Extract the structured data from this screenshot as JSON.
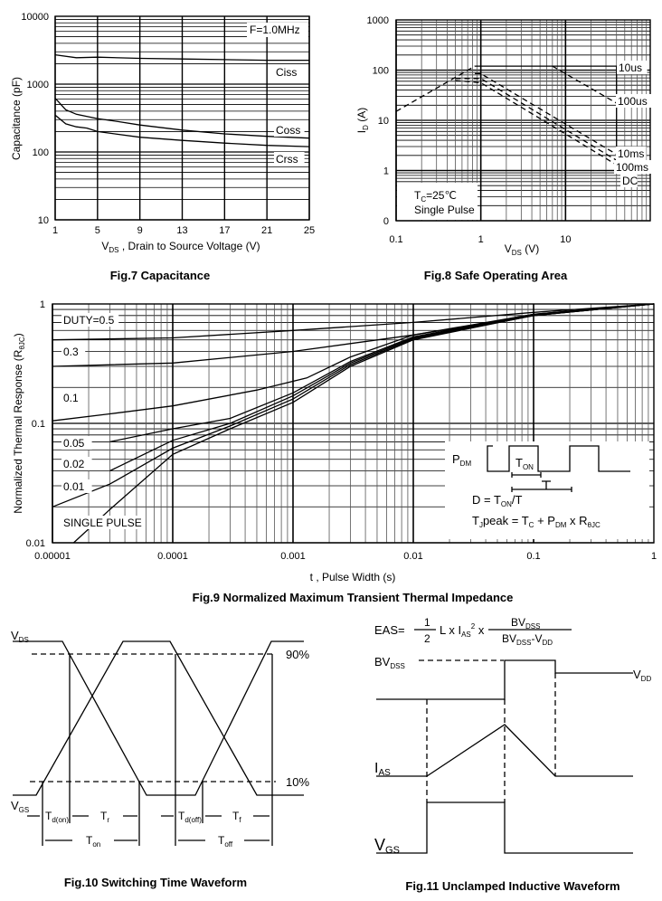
{
  "chart_data": [
    {
      "id": "fig7",
      "type": "line",
      "title": "Fig.7 Capacitance",
      "xlabel": {
        "main": "V",
        "sub": "DS",
        "rest": " , Drain to Source Voltage (V)"
      },
      "ylabel": "Capacitance (pF)",
      "xscale": "linear",
      "yscale": "log",
      "xlim": [
        1,
        25
      ],
      "ylim": [
        10,
        10000
      ],
      "xticks": [
        1,
        5,
        9,
        13,
        17,
        21,
        25
      ],
      "yticks": [
        10,
        100,
        1000,
        10000
      ],
      "ytick_labels": [
        "10",
        "100",
        "1000",
        "10000"
      ],
      "grid": true,
      "annotation": "F=1.0MHz",
      "series": [
        {
          "name": "Ciss",
          "style": "solid",
          "points": [
            [
              1,
              2700
            ],
            [
              3,
              2450
            ],
            [
              5,
              2500
            ],
            [
              9,
              2400
            ],
            [
              13,
              2350
            ],
            [
              17,
              2300
            ],
            [
              21,
              2250
            ],
            [
              25,
              2250
            ]
          ]
        },
        {
          "name": "Coss",
          "style": "solid",
          "points": [
            [
              1,
              620
            ],
            [
              2,
              420
            ],
            [
              3,
              360
            ],
            [
              5,
              310
            ],
            [
              7,
              280
            ],
            [
              9,
              250
            ],
            [
              13,
              210
            ],
            [
              17,
              185
            ],
            [
              21,
              170
            ],
            [
              25,
              160
            ]
          ]
        },
        {
          "name": "Crss",
          "style": "solid",
          "points": [
            [
              1,
              350
            ],
            [
              2,
              260
            ],
            [
              3,
              235
            ],
            [
              4,
              225
            ],
            [
              5,
              200
            ],
            [
              9,
              165
            ],
            [
              13,
              148
            ],
            [
              17,
              135
            ],
            [
              21,
              125
            ],
            [
              25,
              120
            ]
          ]
        }
      ]
    },
    {
      "id": "fig8",
      "type": "line",
      "title": "Fig.8 Safe Operating Area",
      "xlabel": {
        "main": "V",
        "sub": "DS",
        "rest": " (V)"
      },
      "ylabel": {
        "main": "I",
        "sub": "D",
        "rest": " (A)"
      },
      "xscale": "log",
      "yscale": "log",
      "xlim": [
        0.1,
        100
      ],
      "ylim": [
        0.1,
        1000
      ],
      "xticks": [
        0.1,
        1,
        10
      ],
      "xtick_labels": [
        "0.1",
        "1",
        "10"
      ],
      "yticks": [
        0.1,
        1,
        10,
        100,
        1000
      ],
      "ytick_labels": [
        "0",
        "1",
        "10",
        "100",
        "1000"
      ],
      "grid": true,
      "annotations": {
        "tc": {
          "main": "T",
          "sub": "C",
          "rest": "=25℃"
        },
        "pulse": "Single Pulse"
      },
      "series": [
        {
          "name": "",
          "style": "dashed",
          "points": [
            [
              0.1,
              15
            ],
            [
              0.85,
              120
            ]
          ]
        },
        {
          "name": "10us",
          "style": "solid",
          "points": [
            [
              0.85,
              120
            ],
            [
              40,
              120
            ],
            [
              40,
              1
            ]
          ]
        },
        {
          "name": "100us",
          "style": "dashed",
          "points": [
            [
              7,
              120
            ],
            [
              40,
              22
            ]
          ]
        },
        {
          "name": "",
          "style": "dashed",
          "points": [
            [
              0.85,
              85
            ],
            [
              1,
              85
            ],
            [
              40,
              2.1
            ]
          ]
        },
        {
          "name": "10ms",
          "style": "dashed",
          "points": [
            [
              0.5,
              68
            ],
            [
              1,
              68
            ],
            [
              40,
              1.6
            ]
          ]
        },
        {
          "name": "100ms",
          "style": "dashed",
          "points": [
            [
              0.5,
              62
            ],
            [
              1,
              56
            ],
            [
              40,
              1.3
            ]
          ]
        },
        {
          "name": "DC",
          "style": "solid",
          "points": [
            [
              0.1,
              1
            ],
            [
              40,
              1
            ]
          ]
        }
      ]
    },
    {
      "id": "fig9",
      "type": "line",
      "title": "Fig.9 Normalized Maximum Transient Thermal Impedance",
      "xlabel": "t , Pulse Width (s)",
      "ylabel": {
        "main": "Normalized Thermal Response (R",
        "sub": "θJC",
        "rest": ")"
      },
      "xscale": "log",
      "yscale": "log",
      "xlim": [
        1e-05,
        1
      ],
      "ylim": [
        0.01,
        1
      ],
      "xticks": [
        1e-05,
        0.0001,
        0.001,
        0.01,
        0.1,
        1
      ],
      "xtick_labels": [
        "0.00001",
        "0.0001",
        "0.001",
        "0.01",
        "0.1",
        "1"
      ],
      "yticks": [
        0.01,
        0.1,
        1
      ],
      "ytick_labels": [
        "0.01",
        "0.1",
        "1"
      ],
      "grid": true,
      "series": [
        {
          "name": "DUTY=0.5",
          "points": [
            [
              1e-05,
              0.5
            ],
            [
              0.0001,
              0.52
            ],
            [
              0.001,
              0.6
            ],
            [
              0.01,
              0.7
            ],
            [
              0.1,
              0.85
            ],
            [
              1,
              1
            ]
          ]
        },
        {
          "name": "0.3",
          "points": [
            [
              1e-05,
              0.3
            ],
            [
              0.0001,
              0.32
            ],
            [
              0.001,
              0.4
            ],
            [
              0.01,
              0.55
            ],
            [
              0.1,
              0.8
            ],
            [
              1,
              1
            ]
          ]
        },
        {
          "name": "0.1",
          "points": [
            [
              1e-05,
              0.105
            ],
            [
              3e-05,
              0.12
            ],
            [
              0.0001,
              0.14
            ],
            [
              0.0005,
              0.19
            ],
            [
              0.0013,
              0.24
            ],
            [
              0.003,
              0.36
            ],
            [
              0.01,
              0.55
            ],
            [
              0.1,
              0.82
            ],
            [
              1,
              1
            ]
          ]
        },
        {
          "name": "0.05",
          "points": [
            [
              3e-05,
              0.07
            ],
            [
              0.0001,
              0.09
            ],
            [
              0.0003,
              0.11
            ],
            [
              0.001,
              0.18
            ],
            [
              0.003,
              0.33
            ],
            [
              0.01,
              0.53
            ],
            [
              0.1,
              0.82
            ],
            [
              1,
              1
            ]
          ]
        },
        {
          "name": "0.02",
          "points": [
            [
              3e-05,
              0.04
            ],
            [
              0.0001,
              0.072
            ],
            [
              0.0003,
              0.1
            ],
            [
              0.001,
              0.17
            ],
            [
              0.003,
              0.32
            ],
            [
              0.01,
              0.52
            ],
            [
              0.1,
              0.81
            ],
            [
              1,
              1
            ]
          ]
        },
        {
          "name": "0.01",
          "points": [
            [
              1e-05,
              0.02
            ],
            [
              3e-05,
              0.031
            ],
            [
              0.0001,
              0.062
            ],
            [
              0.0003,
              0.095
            ],
            [
              0.001,
              0.16
            ],
            [
              0.003,
              0.31
            ],
            [
              0.01,
              0.51
            ],
            [
              0.1,
              0.8
            ],
            [
              1,
              1
            ]
          ]
        },
        {
          "name": "SINGLE PULSE",
          "points": [
            [
              1.5e-05,
              0.01
            ],
            [
              3e-05,
              0.019
            ],
            [
              0.0001,
              0.055
            ],
            [
              0.0003,
              0.09
            ],
            [
              0.001,
              0.15
            ],
            [
              0.003,
              0.3
            ],
            [
              0.01,
              0.5
            ],
            [
              0.1,
              0.8
            ],
            [
              1,
              1
            ]
          ]
        }
      ],
      "inset": {
        "pdm": {
          "main": "P",
          "sub": "DM"
        },
        "ton": {
          "main": "T",
          "sub": "ON"
        },
        "t": "T",
        "duty": {
          "a": "D = T",
          "sub": "ON",
          "b": "/T"
        },
        "tj": {
          "a": "T",
          "s1": "J",
          "b": "peak = T",
          "s2": "C",
          "c": " + P",
          "s3": "DM",
          "d": " x R",
          "s4": "θJC"
        }
      }
    }
  ],
  "diagrams": {
    "fig10": {
      "title": "Fig.10 Switching Time Waveform",
      "vds": {
        "main": "V",
        "sub": "DS"
      },
      "vgs": {
        "main": "V",
        "sub": "GS"
      },
      "pct90": "90%",
      "pct10": "10%",
      "tdon": {
        "main": "T",
        "sub": "d(on)"
      },
      "tr": {
        "main": "T",
        "sub": "r"
      },
      "tdoff": {
        "main": "T",
        "sub": "d(off)"
      },
      "tf": {
        "main": "T",
        "sub": "f"
      },
      "ton": {
        "main": "T",
        "sub": "on"
      },
      "toff": {
        "main": "T",
        "sub": "off"
      }
    },
    "fig11": {
      "title": "Fig.11 Unclamped Inductive Waveform",
      "formula": {
        "eas": "EAS=",
        "num": "1",
        "den": "2",
        "mid": "L x I",
        "mid_sub": "AS",
        "sup": "2",
        "x": " x",
        "fnum": "BV",
        "fnum_sub": "DSS",
        "fden": "BV",
        "fden_sub": "DSS",
        "fden_mid": "-V",
        "fden_sub2": "DD"
      },
      "bvdss": {
        "main": "BV",
        "sub": "DSS"
      },
      "vdd": {
        "main": "V",
        "sub": "DD"
      },
      "ias": {
        "main": "I",
        "sub": "AS"
      },
      "vgs": {
        "main": "V",
        "sub": "GS"
      }
    }
  }
}
